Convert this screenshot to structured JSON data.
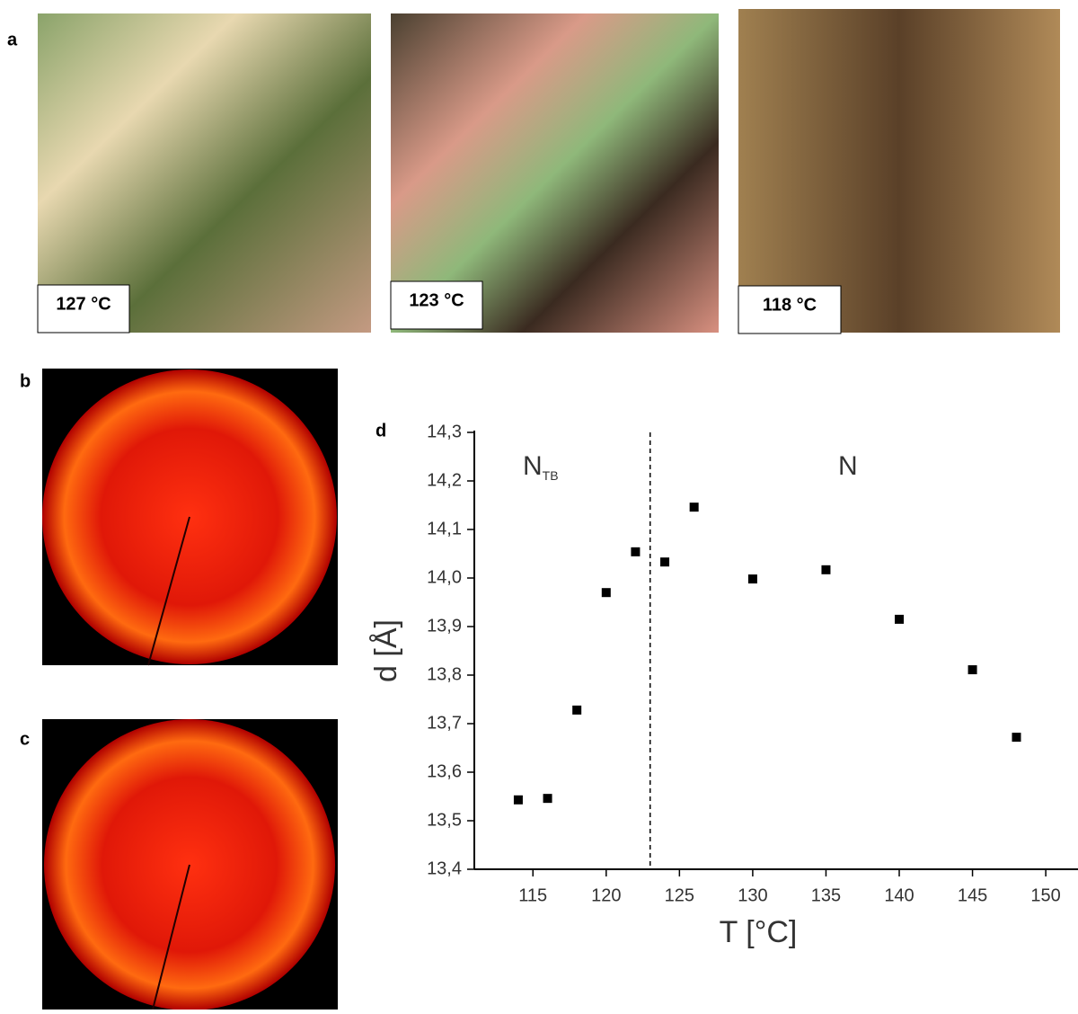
{
  "panel_labels": [
    "a",
    "b",
    "c",
    "d"
  ],
  "micrographs": [
    {
      "label": "127 °C"
    },
    {
      "label": "123 °C"
    },
    {
      "label": "118 °C"
    }
  ],
  "chart_data": {
    "type": "scatter",
    "x_label": "T [°C]",
    "y_label": "d [Å]",
    "annotations": [
      {
        "text": "N",
        "subscript": "TB"
      },
      {
        "text": "N"
      }
    ],
    "transition_x": 123,
    "x": [
      114,
      116,
      118,
      120,
      122,
      124,
      126,
      130,
      135,
      140,
      145,
      148
    ],
    "values": [
      13.543,
      13.546,
      13.728,
      13.97,
      14.054,
      14.033,
      14.146,
      13.998,
      14.017,
      13.915,
      13.811,
      13.672
    ],
    "color": "#000000",
    "xlim": [
      111,
      152.2
    ],
    "xticks": [
      115,
      120,
      125,
      130,
      135,
      140,
      145,
      150
    ],
    "ylim": [
      13.4,
      14.3
    ],
    "yticks": [
      {
        "value": 13.4,
        "label": "13,4"
      },
      {
        "value": 13.5,
        "label": "13,5"
      },
      {
        "value": 13.6,
        "label": "13,6"
      },
      {
        "value": 13.7,
        "label": "13,7"
      },
      {
        "value": 13.8,
        "label": "13,8"
      },
      {
        "value": 13.9,
        "label": "13,9"
      },
      {
        "value": 14.0,
        "label": "14,0"
      },
      {
        "value": 14.1,
        "label": "14,1"
      },
      {
        "value": 14.2,
        "label": "14,2"
      },
      {
        "value": 14.3,
        "label": "14,3"
      }
    ]
  }
}
